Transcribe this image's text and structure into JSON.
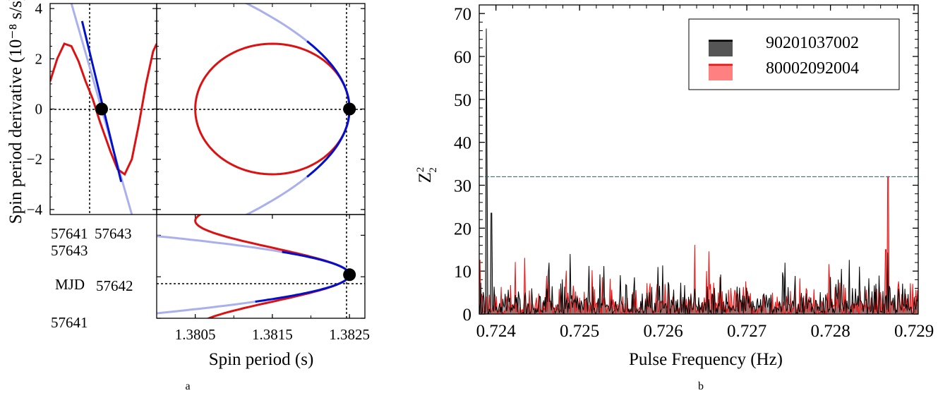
{
  "figure": {
    "caption_a": "a",
    "caption_b": "b"
  },
  "chart_data": [
    {
      "type": "line",
      "panel": "a-top-left",
      "ylabel": "Spin period derivative (10⁻⁸ s/s)",
      "xlim": [
        57640.6,
        57643.6
      ],
      "ylim": [
        -4.2,
        4.2
      ],
      "x_ticklabels": [
        "57641",
        "57643"
      ],
      "y_ticks": [
        4,
        2,
        0,
        -2,
        -4
      ],
      "y_ticklabels": [
        "4",
        "2",
        "0",
        "−2",
        "−4"
      ],
      "marker": {
        "x": 57642.05,
        "y": 0
      },
      "vline_x": 57642.05,
      "hline_y": 0,
      "series": [
        {
          "role": "model",
          "color": "#dd1111",
          "x": [
            57640.6,
            57640.8,
            57641.0,
            57641.2,
            57641.4,
            57641.6,
            57641.8,
            57642.0,
            57642.1,
            57642.3,
            57642.5,
            57642.7,
            57642.9,
            57643.1,
            57643.3,
            57643.5,
            57643.6
          ],
          "y": [
            1.1,
            2.0,
            2.6,
            2.5,
            1.9,
            1.1,
            0.4,
            -0.5,
            -0.9,
            -1.7,
            -2.4,
            -2.6,
            -2.0,
            -0.6,
            1.0,
            2.3,
            2.6
          ]
        },
        {
          "role": "fit-extension",
          "color": "#aab0ee",
          "x": [
            57641.2,
            57642.9
          ],
          "y": [
            4.2,
            -4.2
          ]
        },
        {
          "role": "fit",
          "color": "#0010cc",
          "x": [
            57641.5,
            57642.6
          ],
          "y": [
            3.5,
            -2.9
          ]
        }
      ]
    },
    {
      "type": "line",
      "panel": "a-top-right",
      "xlim": [
        1.38,
        1.3827
      ],
      "ylim": [
        -4.2,
        4.2
      ],
      "y_ticks": [
        4,
        2,
        0,
        -2,
        -4
      ],
      "marker": {
        "x": 1.3825,
        "y": 0
      },
      "vline_x": 1.3825,
      "hline_y": 0,
      "ellipse": {
        "center_x": 1.3815,
        "center_y": 0,
        "half_width": 0.001,
        "half_height": 2.6,
        "color": "#dd1111"
      },
      "parabola": {
        "vertex_x": 1.3825,
        "vertex_y": 0,
        "pass_x": 1.38117,
        "pass_y": 4.2,
        "color_faint": "#aab0ee",
        "color": "#0010cc",
        "dark_span_y": [
          -2.7,
          2.7
        ]
      }
    },
    {
      "type": "line",
      "panel": "a-bottom-right",
      "xlabel": "Spin period (s)",
      "xlim": [
        1.38,
        1.3827
      ],
      "ylim": [
        57641.0,
        57643.5
      ],
      "x_ticks": [
        1.3805,
        1.3815,
        1.3825
      ],
      "x_ticklabels": [
        "1.3805",
        "1.3815",
        "1.3825"
      ],
      "y_ticks": [
        57641,
        57642,
        57643
      ],
      "y_ticklabels": [
        "57641",
        "57642",
        "57643"
      ],
      "ylabel_inline": "MJD",
      "marker": {
        "x": 1.3825,
        "y": 57642.05
      },
      "vline_x": 1.3825,
      "hline_y": 57642.05,
      "curve": {
        "center_x": 1.3815,
        "amp_x": 0.001,
        "t0": 57642.05,
        "period_days": 2.6,
        "color": "#dd1111"
      },
      "parabolas": {
        "vertex_x": 1.3825,
        "vertex_y": 57642.05,
        "pass_x": 1.38,
        "pass_y_upper": 57642.98,
        "pass_y_lower": 57641.12,
        "color_faint": "#aab0ee",
        "color": "#0010cc",
        "dark_span_days": 0.55
      }
    },
    {
      "type": "line",
      "panel": "b",
      "xlabel": "Pulse Frequency (Hz)",
      "ylabel": "Z",
      "ylabel_sup": "2",
      "ylabel_sub": "2",
      "xlim": [
        0.7238,
        0.72905
      ],
      "ylim": [
        0,
        72
      ],
      "x_ticks": [
        0.724,
        0.725,
        0.726,
        0.727,
        0.728,
        0.729
      ],
      "x_ticklabels": [
        "0.724",
        "0.725",
        "0.726",
        "0.727",
        "0.728",
        "0.729"
      ],
      "y_ticks": [
        0,
        10,
        20,
        30,
        40,
        50,
        60,
        70
      ],
      "y_ticklabels": [
        "0",
        "10",
        "20",
        "30",
        "40",
        "50",
        "60",
        "70"
      ],
      "threshold": 32,
      "legend_position": "top-right",
      "series": [
        {
          "name": "90201037002",
          "color": "#000000",
          "fill": "#555555",
          "peaks": [
            [
              0.72388,
              66.5
            ],
            [
              0.72388,
              35
            ],
            [
              0.72394,
              23.5
            ]
          ],
          "noise_level": 15.5
        },
        {
          "name": "80002092004",
          "color": "#ee1111",
          "fill": "#ff8080",
          "peaks": [
            [
              0.72868,
              32
            ],
            [
              0.72866,
              15
            ]
          ],
          "noise_level": 17.5
        }
      ]
    }
  ]
}
